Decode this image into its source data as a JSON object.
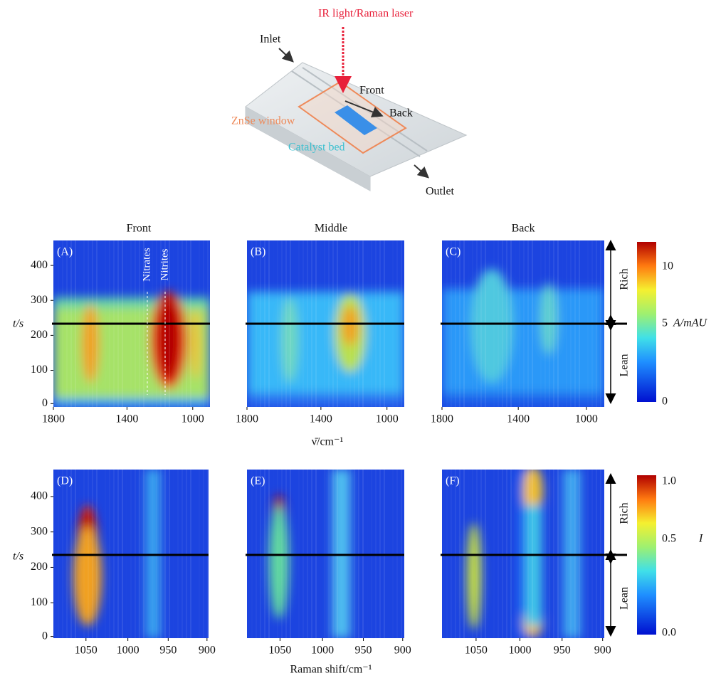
{
  "diagram": {
    "laser": "IR light/Raman laser",
    "inlet": "Inlet",
    "front": "Front",
    "back": "Back",
    "window": "ZnSe window",
    "bed": "Catalyst bed",
    "outlet": "Outlet"
  },
  "columns": [
    "Front",
    "Middle",
    "Back"
  ],
  "panels": [
    "(A)",
    "(B)",
    "(C)",
    "(D)",
    "(E)",
    "(F)"
  ],
  "peaks": [
    "Nitrates",
    "Nitrites"
  ],
  "regimes": [
    "Rich",
    "Lean"
  ],
  "ir": {
    "ylabel": "t/s",
    "yticks": [
      "400",
      "300",
      "200",
      "100",
      "0"
    ],
    "xticks": [
      "1800",
      "1400",
      "1000"
    ],
    "xlabel": "ν̄/cm⁻¹",
    "colorbar": [
      "10",
      "5",
      "0"
    ],
    "unit": "A/mAU"
  },
  "raman": {
    "ylabel": "t/s",
    "yticks": [
      "400",
      "300",
      "200",
      "100",
      "0"
    ],
    "xticks": [
      "1050",
      "1000",
      "950",
      "900"
    ],
    "xlabel": "Raman shift/cm⁻¹",
    "colorbar": [
      "1.0",
      "0.5",
      "0.0"
    ],
    "unit": "I"
  }
}
